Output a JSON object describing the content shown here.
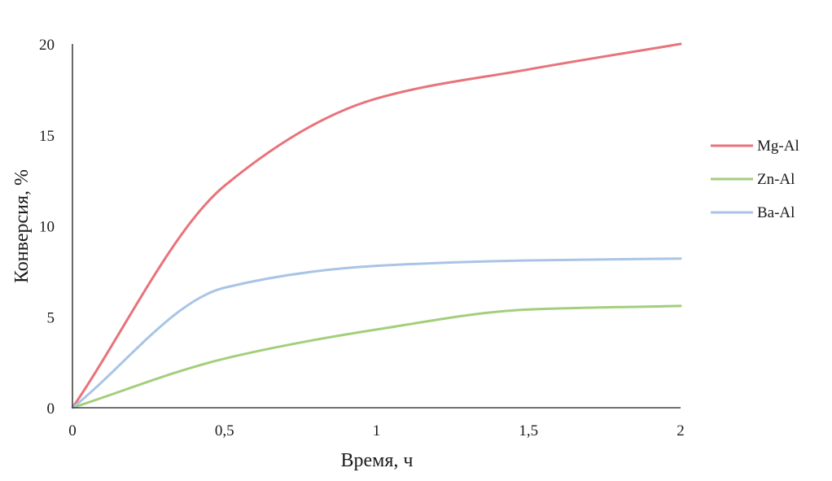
{
  "chart_data": {
    "type": "line",
    "xlabel": "Время, ч",
    "ylabel": "Конверсия, %",
    "xlim": [
      0,
      2
    ],
    "ylim": [
      0,
      20
    ],
    "x_ticks": [
      0,
      0.5,
      1,
      1.5,
      2
    ],
    "x_tick_labels": [
      "0",
      "0,5",
      "1",
      "1,5",
      "2"
    ],
    "y_ticks": [
      0,
      5,
      10,
      15,
      20
    ],
    "y_tick_labels": [
      "0",
      "5",
      "10",
      "15",
      "20"
    ],
    "grid": false,
    "legend_position": "right",
    "x": [
      0,
      0.5,
      1,
      1.5,
      2
    ],
    "series": [
      {
        "name": "Mg-Al",
        "color": "#e8737b",
        "values": [
          0,
          12.2,
          17.0,
          18.6,
          20.0
        ]
      },
      {
        "name": "Zn-Al",
        "color": "#a3cf7c",
        "values": [
          0,
          2.7,
          4.3,
          5.4,
          5.6
        ]
      },
      {
        "name": "Ba-Al",
        "color": "#a9c4e6",
        "values": [
          0,
          6.6,
          7.8,
          8.1,
          8.2
        ]
      }
    ]
  }
}
